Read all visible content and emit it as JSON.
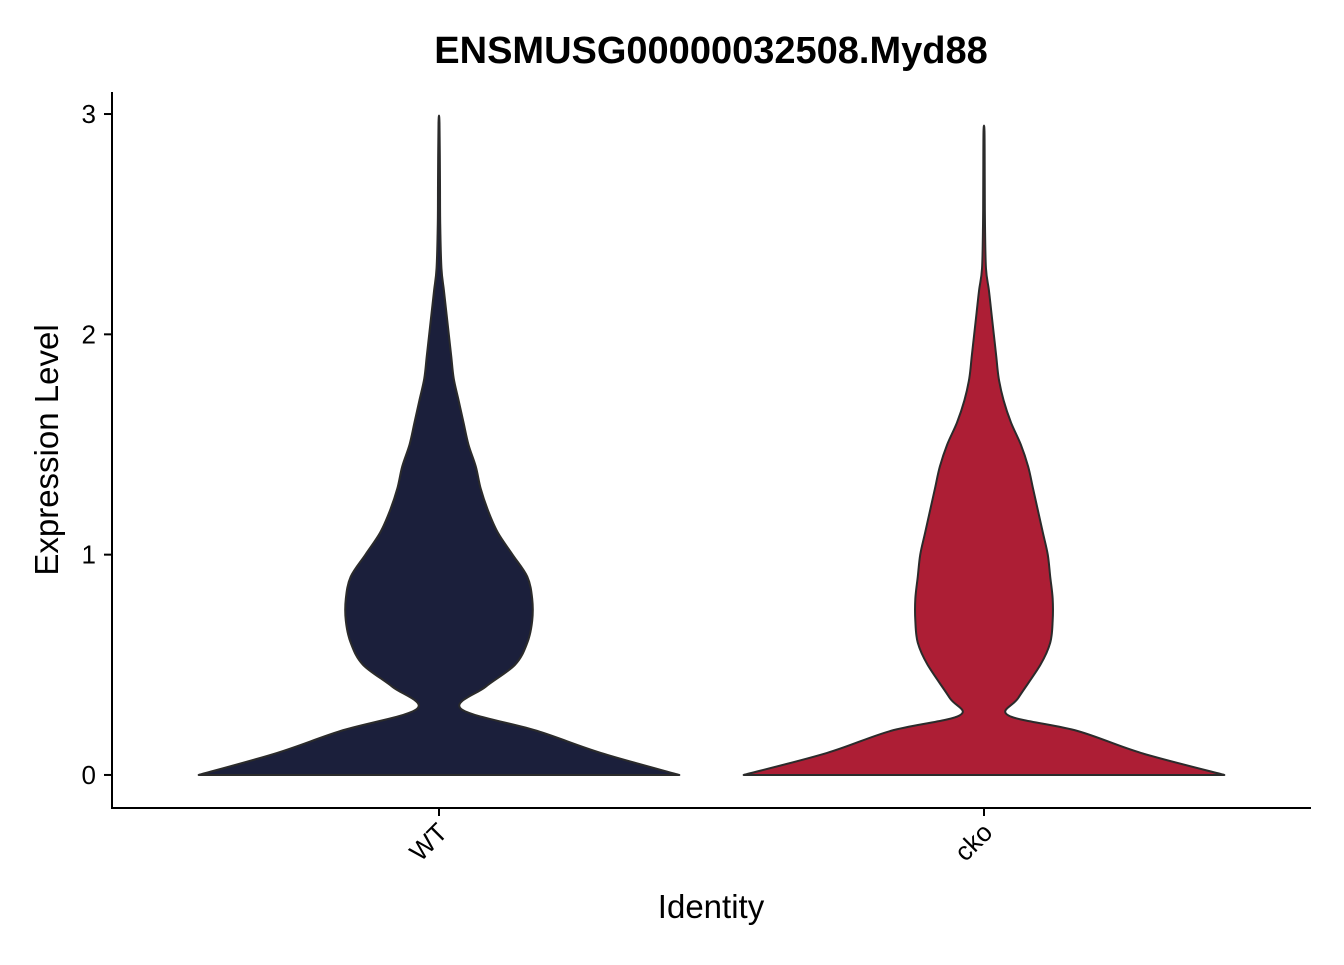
{
  "chart_data": {
    "type": "violin",
    "title": "ENSMUSG00000032508.Myd88",
    "xlabel": "Identity",
    "ylabel": "Expression Level",
    "ylim": [
      -0.15,
      3.1
    ],
    "yticks": [
      0,
      1,
      2,
      3
    ],
    "grid": false,
    "legend": "none",
    "categories": [
      "WT",
      "cko"
    ],
    "series": [
      {
        "name": "WT",
        "color": "#1b1f3b",
        "max": 2.96,
        "density": [
          [
            0.0,
            0.98
          ],
          [
            0.1,
            0.66
          ],
          [
            0.2,
            0.4
          ],
          [
            0.3,
            0.09
          ],
          [
            0.4,
            0.19
          ],
          [
            0.5,
            0.31
          ],
          [
            0.6,
            0.36
          ],
          [
            0.7,
            0.38
          ],
          [
            0.8,
            0.38
          ],
          [
            0.9,
            0.36
          ],
          [
            1.0,
            0.3
          ],
          [
            1.1,
            0.24
          ],
          [
            1.2,
            0.2
          ],
          [
            1.3,
            0.17
          ],
          [
            1.4,
            0.15
          ],
          [
            1.5,
            0.12
          ],
          [
            1.6,
            0.1
          ],
          [
            1.7,
            0.08
          ],
          [
            1.8,
            0.06
          ],
          [
            1.9,
            0.05
          ],
          [
            2.0,
            0.04
          ],
          [
            2.1,
            0.03
          ],
          [
            2.2,
            0.02
          ],
          [
            2.3,
            0.01
          ],
          [
            2.5,
            0.005
          ],
          [
            2.7,
            0.004
          ],
          [
            2.96,
            0.002
          ]
        ]
      },
      {
        "name": "cko",
        "color": "#ad1e35",
        "max": 2.92,
        "density": [
          [
            0.0,
            0.98
          ],
          [
            0.1,
            0.64
          ],
          [
            0.2,
            0.38
          ],
          [
            0.27,
            0.1
          ],
          [
            0.35,
            0.14
          ],
          [
            0.5,
            0.23
          ],
          [
            0.6,
            0.27
          ],
          [
            0.7,
            0.28
          ],
          [
            0.8,
            0.28
          ],
          [
            0.9,
            0.27
          ],
          [
            1.0,
            0.26
          ],
          [
            1.1,
            0.24
          ],
          [
            1.2,
            0.22
          ],
          [
            1.3,
            0.2
          ],
          [
            1.4,
            0.18
          ],
          [
            1.5,
            0.15
          ],
          [
            1.6,
            0.11
          ],
          [
            1.7,
            0.08
          ],
          [
            1.8,
            0.06
          ],
          [
            1.9,
            0.05
          ],
          [
            2.0,
            0.04
          ],
          [
            2.1,
            0.03
          ],
          [
            2.2,
            0.02
          ],
          [
            2.3,
            0.008
          ],
          [
            2.5,
            0.004
          ],
          [
            2.7,
            0.003
          ],
          [
            2.92,
            0.002
          ]
        ]
      }
    ]
  }
}
